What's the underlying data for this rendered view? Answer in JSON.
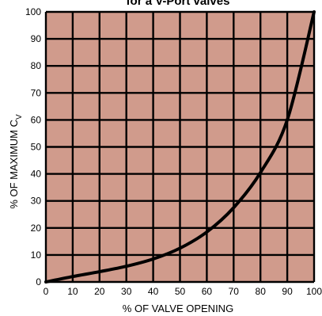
{
  "chart_data": {
    "type": "line",
    "title": "for a V-Port valves",
    "xlabel": "% OF VALVE OPENING",
    "ylabel_main": "% OF MAXIMUM C",
    "ylabel_sub": "V",
    "xlim": [
      0,
      100
    ],
    "ylim": [
      0,
      100
    ],
    "x_ticks": [
      0,
      10,
      20,
      30,
      40,
      50,
      60,
      70,
      80,
      90,
      100
    ],
    "y_ticks": [
      0,
      10,
      20,
      30,
      40,
      50,
      60,
      70,
      80,
      90,
      100
    ],
    "grid": true,
    "colors": {
      "plot_background": "#d09b8c",
      "grid": "#000000",
      "curve": "#000000"
    },
    "series": [
      {
        "x": [
          0,
          10,
          20,
          30,
          40,
          50,
          60,
          70,
          80,
          90,
          100
        ],
        "y": [
          0,
          2,
          3.8,
          5.8,
          8.5,
          12.5,
          18.5,
          27.5,
          40.5,
          60,
          100
        ]
      }
    ]
  }
}
